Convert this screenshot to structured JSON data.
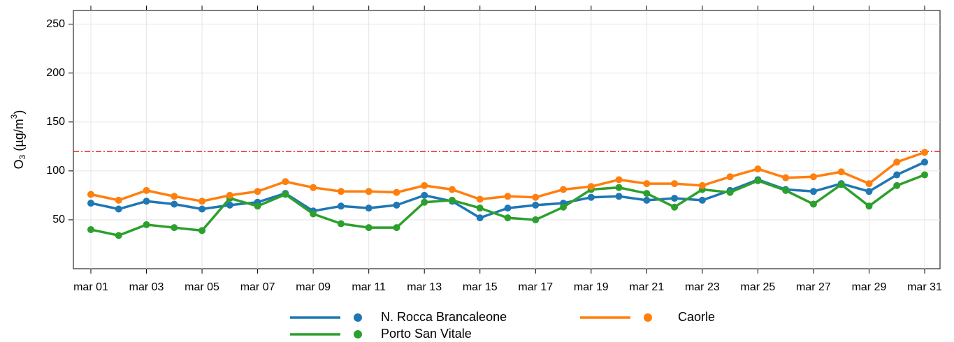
{
  "chart_data": {
    "type": "line",
    "ylabel": [
      "O",
      "3",
      " (µg/m",
      "3",
      ")"
    ],
    "categories": [
      "mar 01",
      null,
      "mar 03",
      null,
      "mar 05",
      null,
      "mar 07",
      null,
      "mar 09",
      null,
      "mar 11",
      null,
      "mar 13",
      null,
      "mar 15",
      null,
      "mar 17",
      null,
      "mar 19",
      null,
      "mar 21",
      null,
      "mar 23",
      null,
      "mar 25",
      null,
      "mar 27",
      null,
      "mar 29",
      null,
      "mar 31"
    ],
    "series": [
      {
        "name": "N. Rocca Brancaleone",
        "color": "#1f77b4",
        "values": [
          67,
          61,
          69,
          66,
          61,
          65,
          68,
          77,
          59,
          64,
          62,
          65,
          75,
          69,
          52,
          62,
          65,
          67,
          73,
          74,
          70,
          72,
          70,
          80,
          91,
          81,
          79,
          87,
          79,
          96,
          109
        ]
      },
      {
        "name": "Porto San Vitale",
        "color": "#2ca02c",
        "values": [
          40,
          34,
          45,
          42,
          39,
          72,
          64,
          76,
          56,
          46,
          42,
          42,
          68,
          70,
          62,
          52,
          50,
          63,
          81,
          83,
          77,
          63,
          81,
          78,
          90,
          80,
          66,
          86,
          64,
          85,
          96
        ]
      },
      {
        "name": "Caorle",
        "color": "#ff7f0e",
        "values": [
          76,
          70,
          80,
          74,
          69,
          75,
          79,
          89,
          83,
          79,
          79,
          78,
          85,
          81,
          71,
          74,
          73,
          81,
          84,
          91,
          87,
          87,
          85,
          94,
          102,
          93,
          94,
          99,
          87,
          109,
          119
        ]
      }
    ],
    "threshold": {
      "value": 120,
      "color": "#e31a1c"
    },
    "ylim": [
      0,
      264
    ],
    "yticks": [
      50,
      100,
      150,
      200,
      250
    ],
    "grid": true,
    "legend": "bottom"
  }
}
